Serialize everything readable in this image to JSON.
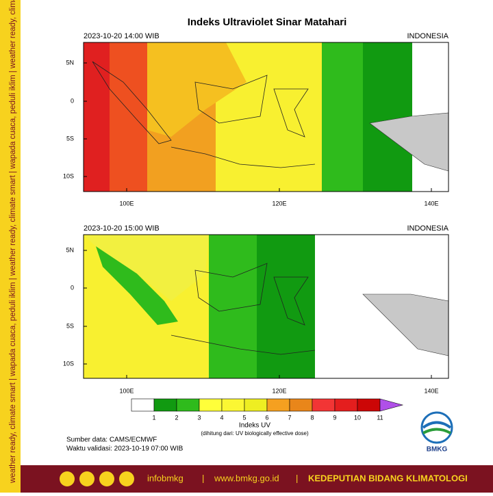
{
  "sidebar_text": "weather ready, climate smart | wapada cuaca, peduli iklim | weather ready, climate smart | wapada cuaca, peduli iklim | weather ready, climate smart | wapada cuaca, peduli iklim",
  "title": "Indeks Ultraviolet Sinar Matahari",
  "maps": [
    {
      "time": "2023-10-20  14:00 WIB",
      "region": "INDONESIA",
      "lat_ticks": [
        "5N",
        "0",
        "5S",
        "10S"
      ],
      "lon_ticks": [
        "100E",
        "120E",
        "140E"
      ]
    },
    {
      "time": "2023-10-20  15:00 WIB",
      "region": "INDONESIA",
      "lat_ticks": [
        "5N",
        "0",
        "5S",
        "10S"
      ],
      "lon_ticks": [
        "100E",
        "120E",
        "140E"
      ]
    }
  ],
  "colorbar": {
    "ticks": [
      1,
      2,
      3,
      4,
      5,
      6,
      7,
      8,
      9,
      10,
      11
    ],
    "colors": [
      "#ffffff",
      "#119a11",
      "#2fbb1c",
      "#ffff3a",
      "#fbf733",
      "#eeee22",
      "#f5a020",
      "#e9861a",
      "#f23535",
      "#e41e1e",
      "#cc0606",
      "#b050e8"
    ],
    "title": "Indeks UV",
    "subtitle": "(dihitung dari: UV biologically effective dose)"
  },
  "source": "Sumber data: CAMS/ECMWF",
  "validity": "Waktu validasi: 2023-10-19 07:00 WIB",
  "logo": "BMKG",
  "footer": {
    "handle": "infobmkg",
    "site": "www.bmkg.go.id",
    "division": "KEDEPUTIAN BIDANG KLIMATOLOGI"
  }
}
